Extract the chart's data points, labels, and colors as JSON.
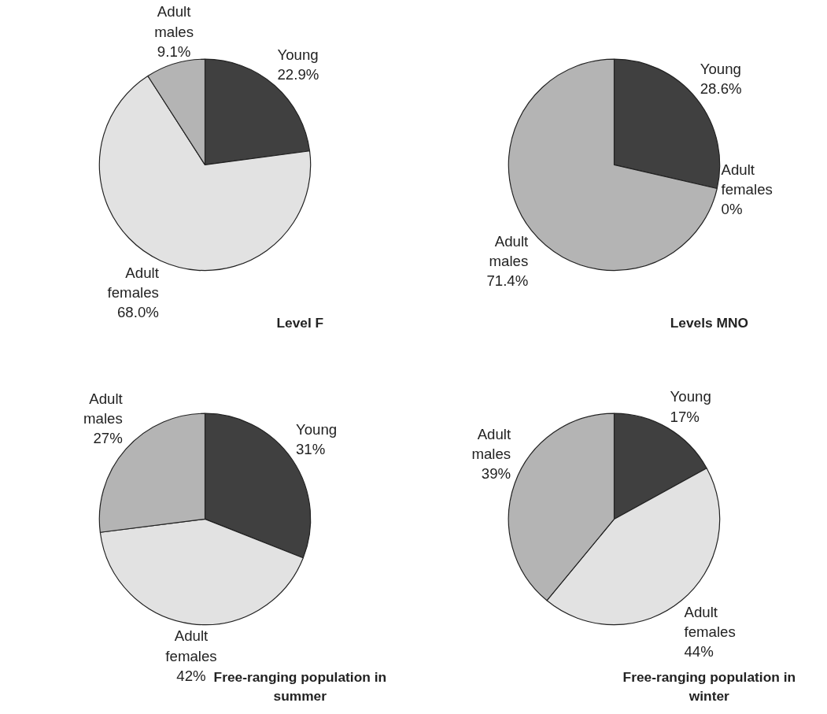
{
  "chart_data": [
    {
      "type": "pie",
      "title": "Level F",
      "categories": [
        "Young",
        "Adult females",
        "Adult males"
      ],
      "values": [
        22.9,
        68.0,
        9.1
      ],
      "value_labels": [
        "22.9%",
        "68.0%",
        "9.1%"
      ],
      "colors": [
        "#404040",
        "#e2e2e2",
        "#b4b4b4"
      ],
      "legend": false
    },
    {
      "type": "pie",
      "title": "Levels MNO",
      "categories": [
        "Young",
        "Adult females",
        "Adult males"
      ],
      "values": [
        28.6,
        0,
        71.4
      ],
      "value_labels": [
        "28.6%",
        "0%",
        "71.4%"
      ],
      "colors": [
        "#404040",
        "#e2e2e2",
        "#b4b4b4"
      ],
      "legend": false
    },
    {
      "type": "pie",
      "title": "Free-ranging population in summer",
      "categories": [
        "Young",
        "Adult females",
        "Adult males"
      ],
      "values": [
        31,
        42,
        27
      ],
      "value_labels": [
        "31%",
        "42%",
        "27%"
      ],
      "colors": [
        "#404040",
        "#e2e2e2",
        "#b4b4b4"
      ],
      "legend": false
    },
    {
      "type": "pie",
      "title": "Free-ranging population in winter",
      "categories": [
        "Young",
        "Adult females",
        "Adult males"
      ],
      "values": [
        17,
        44,
        39
      ],
      "value_labels": [
        "17%",
        "44%",
        "39%"
      ],
      "colors": [
        "#404040",
        "#e2e2e2",
        "#b4b4b4"
      ],
      "legend": false
    }
  ]
}
